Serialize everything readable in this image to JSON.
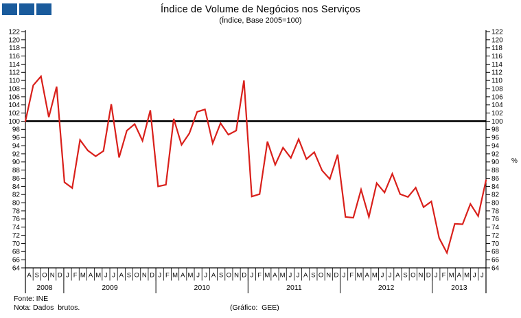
{
  "header": {
    "logo_color": "#1A5B9C",
    "logo_square_count": 3,
    "title": "Índice de Volume de Negócios nos Serviços",
    "subtitle": "(Índice,  Base 2005=100)"
  },
  "chart_data": {
    "type": "line",
    "title": "Índice de Volume de Negócios nos Serviços",
    "subtitle": "(Índice, Base 2005=100)",
    "unit_label": "%",
    "grid": false,
    "legend": "none",
    "y_axis": {
      "min": 64,
      "max": 122,
      "tick_step": 2,
      "sides": [
        "left",
        "right"
      ]
    },
    "baseline": {
      "value": 100,
      "color": "#000000"
    },
    "line_color": "#D9201B",
    "axis_color": "#000000",
    "months": [
      "A",
      "S",
      "O",
      "N",
      "D",
      "J",
      "F",
      "M",
      "A",
      "M",
      "J",
      "J",
      "A",
      "S",
      "O",
      "N",
      "D",
      "J",
      "F",
      "M",
      "A",
      "M",
      "J",
      "J",
      "A",
      "S",
      "O",
      "N",
      "D",
      "J",
      "F",
      "M",
      "A",
      "M",
      "J",
      "J",
      "A",
      "S",
      "O",
      "N",
      "D",
      "J",
      "F",
      "M",
      "A",
      "M",
      "J",
      "J",
      "A",
      "S",
      "O",
      "N",
      "D",
      "J",
      "F",
      "M",
      "A",
      "M",
      "J",
      "J"
    ],
    "years": [
      {
        "label": "2008",
        "months": 5
      },
      {
        "label": "2009",
        "months": 12
      },
      {
        "label": "2010",
        "months": 12
      },
      {
        "label": "2011",
        "months": 12
      },
      {
        "label": "2012",
        "months": 12
      },
      {
        "label": "2013",
        "months": 7
      }
    ],
    "series": [
      {
        "name": "Índice de Volume de Negócios nos Serviços",
        "color": "#D9201B",
        "values": [
          100.0,
          108.8,
          111.0,
          101.0,
          108.5,
          85.0,
          83.6,
          95.4,
          92.8,
          91.4,
          92.7,
          104.2,
          91.1,
          97.7,
          99.3,
          95.2,
          102.7,
          84.0,
          84.4,
          100.6,
          94.2,
          97.0,
          102.3,
          102.9,
          94.6,
          99.5,
          96.7,
          97.7,
          110.0,
          81.5,
          82.1,
          95.0,
          89.3,
          93.5,
          91.0,
          95.6,
          90.7,
          92.4,
          87.9,
          85.8,
          91.8,
          76.5,
          76.3,
          83.2,
          76.5,
          84.8,
          82.5,
          87.1,
          82.1,
          81.4,
          83.7,
          78.9,
          80.3,
          71.3,
          67.7,
          74.8,
          74.7,
          79.7,
          76.7,
          85.5
        ]
      }
    ]
  },
  "footer": {
    "source": "Fonte: INE",
    "note": "Nota: Dados  brutos.",
    "credit": "(Gráfico:  GEE)"
  }
}
